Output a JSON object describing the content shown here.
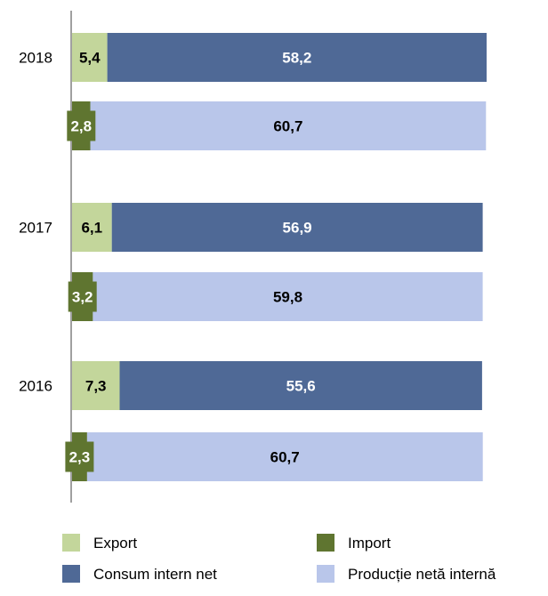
{
  "chart_data": {
    "type": "bar",
    "orientation": "horizontal",
    "stacked": true,
    "groups": [
      "2018",
      "2017",
      "2016"
    ],
    "rows": [
      {
        "group": "2018",
        "series": [
          {
            "name": "Export",
            "value": 5.4,
            "label": "5,4"
          },
          {
            "name": "Consum intern net",
            "value": 58.2,
            "label": "58,2"
          }
        ]
      },
      {
        "group": "2018",
        "series": [
          {
            "name": "Import",
            "value": 2.8,
            "label": "2,8"
          },
          {
            "name": "Producție netă internă",
            "value": 60.7,
            "label": "60,7"
          }
        ]
      },
      {
        "group": "2017",
        "series": [
          {
            "name": "Export",
            "value": 6.1,
            "label": "6,1"
          },
          {
            "name": "Consum intern net",
            "value": 56.9,
            "label": "56,9"
          }
        ]
      },
      {
        "group": "2017",
        "series": [
          {
            "name": "Import",
            "value": 3.2,
            "label": "3,2"
          },
          {
            "name": "Producție netă internă",
            "value": 59.8,
            "label": "59,8"
          }
        ]
      },
      {
        "group": "2016",
        "series": [
          {
            "name": "Export",
            "value": 7.3,
            "label": "7,3"
          },
          {
            "name": "Consum intern net",
            "value": 55.6,
            "label": "55,6"
          }
        ]
      },
      {
        "group": "2016",
        "series": [
          {
            "name": "Import",
            "value": 2.3,
            "label": "2,3"
          },
          {
            "name": "Producție netă internă",
            "value": 60.7,
            "label": "60,7"
          }
        ]
      }
    ],
    "legend": {
      "placement": "bottom",
      "items": [
        {
          "name": "Export",
          "color": "#c3d69b"
        },
        {
          "name": "Import",
          "color": "#5f7530"
        },
        {
          "name": "Consum intern net",
          "color": "#4f6996"
        },
        {
          "name": "Producție netă internă",
          "color": "#b9c6ea"
        }
      ]
    },
    "label_colors": {
      "Export": "#000000",
      "Import": "#ffffff",
      "Consum intern net": "#ffffff",
      "Producție netă internă": "#000000"
    },
    "title": "",
    "xlabel": "",
    "ylabel": "",
    "xlim": [
      0,
      63.6
    ],
    "grid": false
  }
}
